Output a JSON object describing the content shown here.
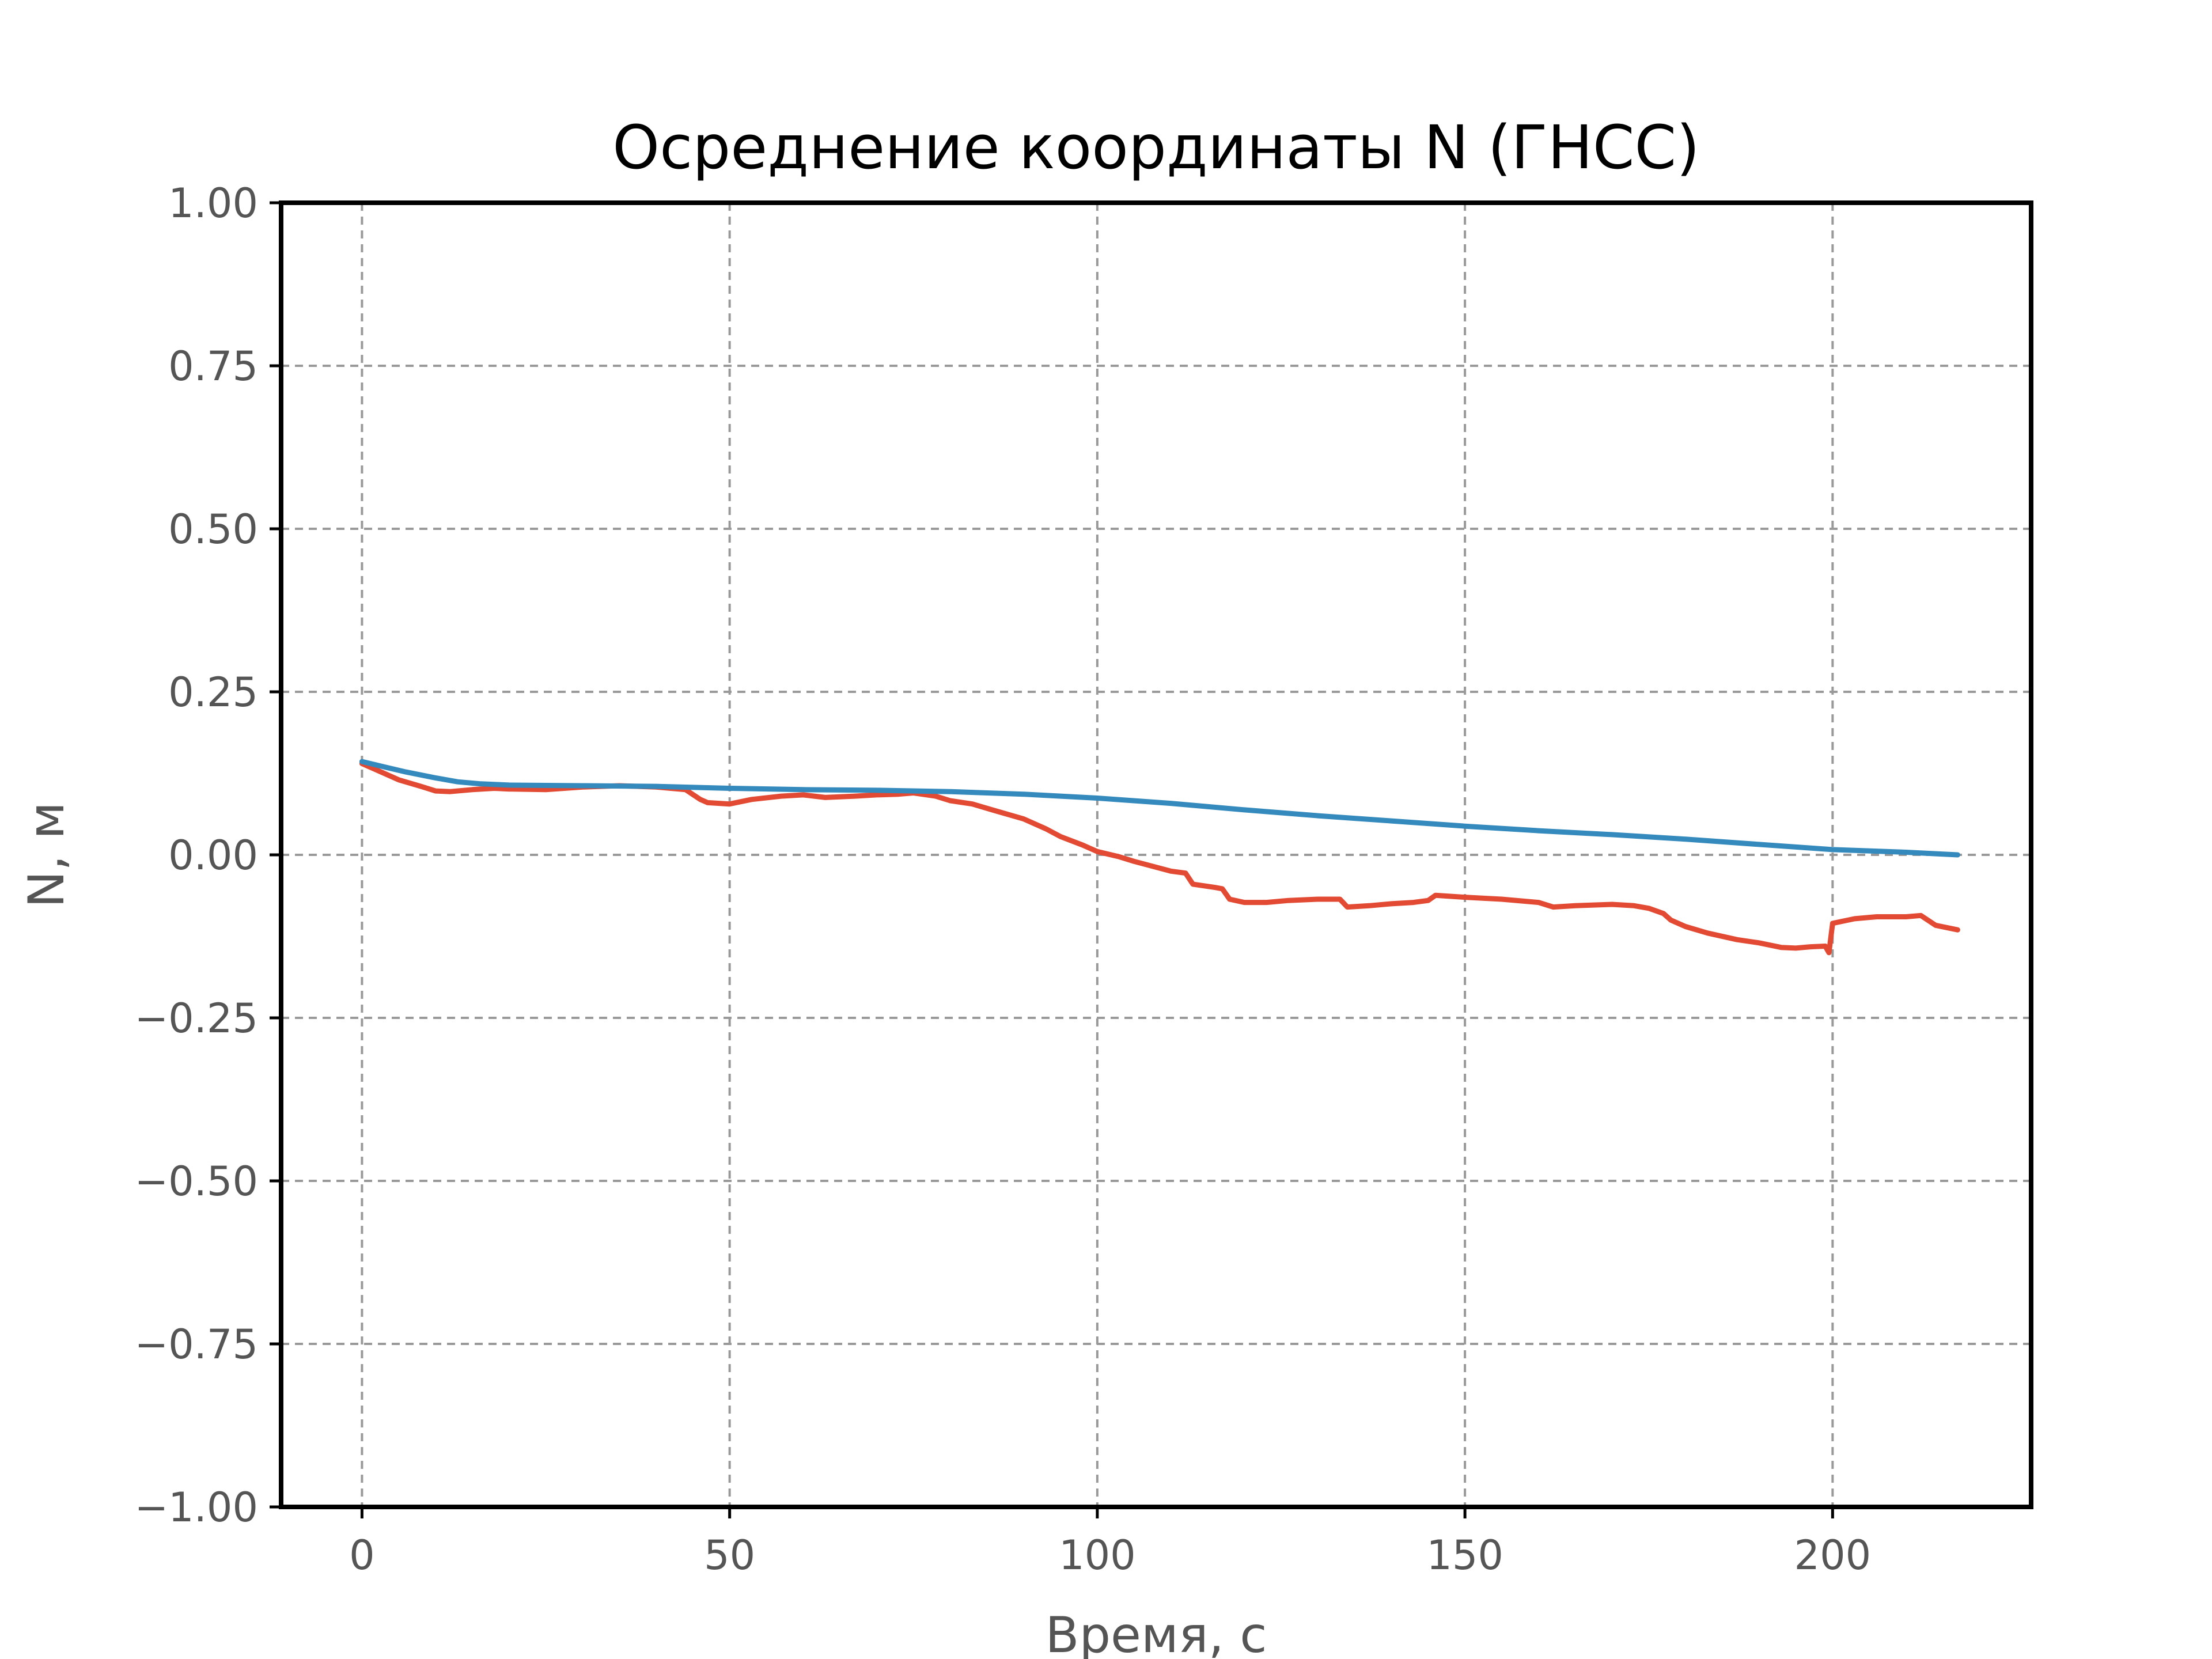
{
  "chart_data": {
    "type": "line",
    "title": "Осреднение координаты N (ГНСС)",
    "xlabel": "Время, с",
    "ylabel": "N, м",
    "xlim": [
      -11,
      227
    ],
    "ylim": [
      -1.0,
      1.0
    ],
    "xticks": [
      0,
      50,
      100,
      150,
      200
    ],
    "xtick_labels": [
      "0",
      "50",
      "100",
      "150",
      "200"
    ],
    "yticks": [
      1.0,
      0.75,
      0.5,
      0.25,
      0.0,
      -0.25,
      -0.5,
      -0.75,
      -1.0
    ],
    "ytick_labels": [
      "1.00",
      "0.75",
      "0.50",
      "0.25",
      "0.00",
      "−0.25",
      "−0.50",
      "−0.75",
      "−1.00"
    ],
    "grid": true,
    "series": [
      {
        "color": "#e24a33",
        "x": [
          0,
          2,
          5,
          8,
          10,
          12,
          15,
          18,
          20,
          25,
          30,
          35,
          40,
          44,
          46,
          47,
          50,
          53,
          57,
          60,
          63,
          67,
          70,
          73,
          75,
          78,
          80,
          83,
          86,
          90,
          93,
          95,
          98,
          100,
          103,
          105,
          110,
          112,
          113,
          116,
          117,
          118,
          120,
          123,
          126,
          130,
          133,
          134,
          137,
          140,
          143,
          145,
          146,
          150,
          155,
          160,
          162,
          165,
          170,
          173,
          175,
          177,
          178,
          180,
          183,
          187,
          190,
          193,
          195,
          197,
          199,
          199.5,
          200,
          203,
          206,
          210,
          212,
          214,
          217
        ],
        "y": [
          0.14,
          0.13,
          0.115,
          0.105,
          0.098,
          0.097,
          0.1,
          0.102,
          0.101,
          0.1,
          0.104,
          0.106,
          0.104,
          0.1,
          0.085,
          0.08,
          0.078,
          0.085,
          0.09,
          0.092,
          0.088,
          0.09,
          0.092,
          0.093,
          0.095,
          0.09,
          0.083,
          0.078,
          0.068,
          0.055,
          0.04,
          0.028,
          0.015,
          0.005,
          -0.003,
          -0.01,
          -0.025,
          -0.028,
          -0.045,
          -0.05,
          -0.052,
          -0.068,
          -0.073,
          -0.073,
          -0.07,
          -0.068,
          -0.068,
          -0.08,
          -0.078,
          -0.075,
          -0.073,
          -0.07,
          -0.062,
          -0.065,
          -0.068,
          -0.073,
          -0.08,
          -0.078,
          -0.076,
          -0.078,
          -0.082,
          -0.09,
          -0.1,
          -0.11,
          -0.12,
          -0.13,
          -0.135,
          -0.142,
          -0.143,
          -0.141,
          -0.14,
          -0.15,
          -0.105,
          -0.098,
          -0.095,
          -0.095,
          -0.093,
          -0.108,
          -0.115
        ]
      },
      {
        "color": "#348abd",
        "x": [
          0,
          3,
          6,
          10,
          13,
          16,
          20,
          30,
          40,
          50,
          60,
          70,
          80,
          90,
          100,
          110,
          120,
          130,
          140,
          150,
          160,
          170,
          180,
          190,
          200,
          210,
          217
        ],
        "y": [
          0.143,
          0.135,
          0.127,
          0.118,
          0.112,
          0.109,
          0.107,
          0.106,
          0.105,
          0.102,
          0.1,
          0.099,
          0.097,
          0.093,
          0.087,
          0.079,
          0.069,
          0.06,
          0.052,
          0.044,
          0.037,
          0.031,
          0.024,
          0.016,
          0.008,
          0.004,
          0.0
        ]
      }
    ]
  }
}
